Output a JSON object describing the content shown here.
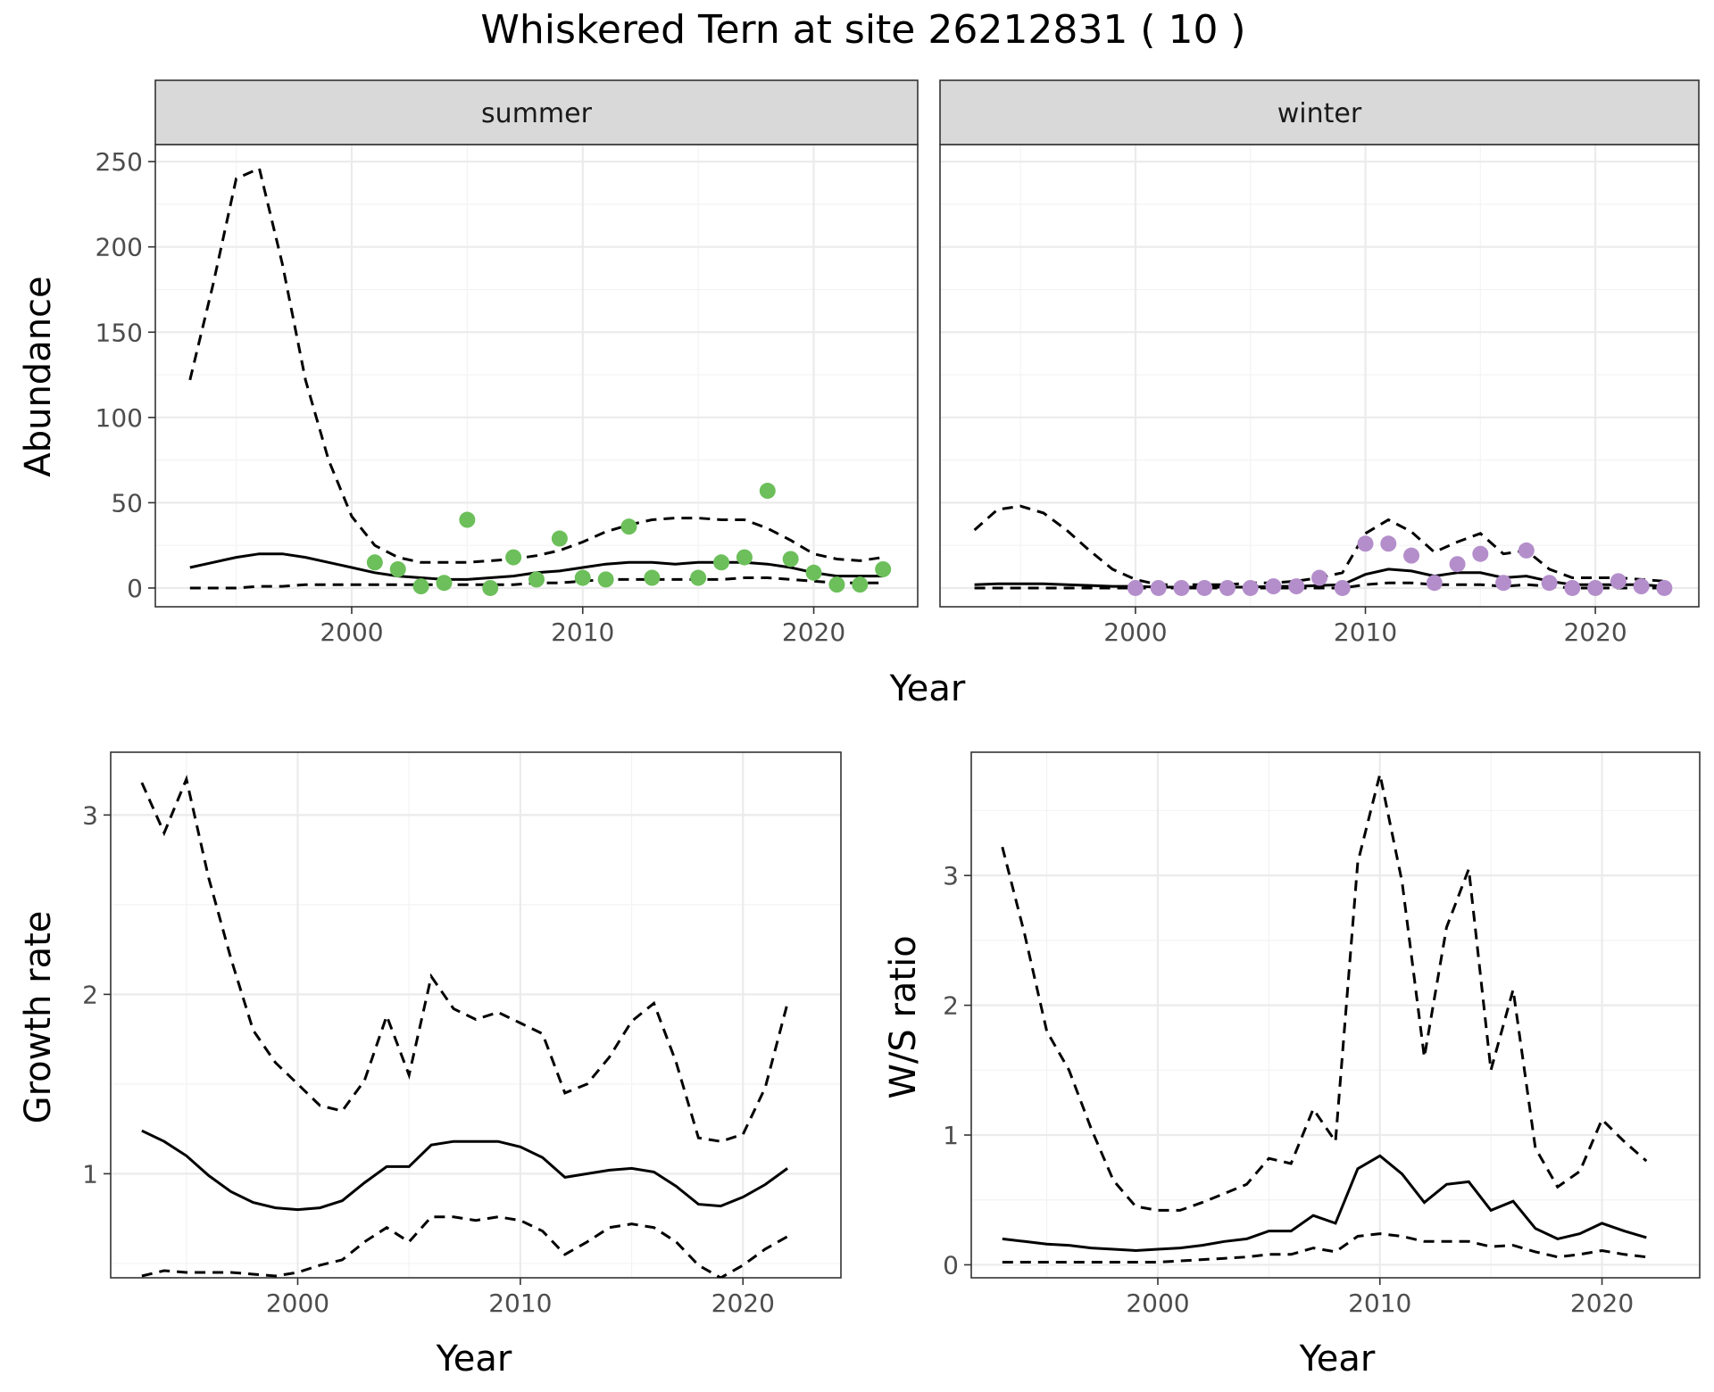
{
  "title": "Whiskered Tern at site 26212831 ( 10 )",
  "chart_data": [
    {
      "id": "summer",
      "type": "line",
      "strip_label": "summer",
      "xlabel": "Year",
      "ylabel": "Abundance",
      "xlim": [
        1991.5,
        2024.5
      ],
      "ylim": [
        -11,
        260
      ],
      "xticks": [
        2000,
        2010,
        2020
      ],
      "yticks": [
        0,
        50,
        100,
        150,
        200,
        250
      ],
      "grid": true,
      "point_color": "#6cbf5a",
      "fit": {
        "x": [
          1993,
          1994,
          1995,
          1996,
          1997,
          1998,
          1999,
          2000,
          2001,
          2002,
          2003,
          2004,
          2005,
          2006,
          2007,
          2008,
          2009,
          2010,
          2011,
          2012,
          2013,
          2014,
          2015,
          2016,
          2017,
          2018,
          2019,
          2020,
          2021,
          2022,
          2023
        ],
        "mean": [
          12,
          15,
          18,
          20,
          20,
          18,
          15,
          12,
          9,
          7,
          6,
          5,
          5,
          6,
          7,
          9,
          10,
          12,
          14,
          15,
          15,
          14,
          15,
          15,
          15,
          14,
          12,
          9,
          7,
          7,
          7
        ],
        "upper": [
          122,
          178,
          240,
          246,
          190,
          122,
          75,
          42,
          25,
          18,
          15,
          15,
          15,
          16,
          17,
          19,
          22,
          27,
          33,
          37,
          40,
          41,
          41,
          40,
          40,
          35,
          28,
          20,
          17,
          16,
          18
        ],
        "lower": [
          0,
          0,
          0,
          1,
          1,
          2,
          2,
          2,
          2,
          2,
          2,
          2,
          2,
          2,
          2,
          3,
          3,
          4,
          5,
          5,
          5,
          5,
          5,
          5,
          6,
          6,
          5,
          4,
          3,
          3,
          3
        ]
      },
      "points": {
        "x": [
          2001,
          2002,
          2003,
          2004,
          2005,
          2006,
          2007,
          2008,
          2009,
          2010,
          2011,
          2012,
          2013,
          2015,
          2016,
          2017,
          2018,
          2019,
          2020,
          2021,
          2022,
          2023
        ],
        "y": [
          15,
          11,
          1,
          3,
          40,
          0,
          18,
          5,
          29,
          6,
          5,
          36,
          6,
          6,
          15,
          18,
          57,
          17,
          9,
          2,
          2,
          11
        ]
      }
    },
    {
      "id": "winter",
      "type": "line",
      "strip_label": "winter",
      "xlabel": "Year",
      "ylabel": "Abundance",
      "xlim": [
        1991.5,
        2024.5
      ],
      "ylim": [
        -11,
        260
      ],
      "xticks": [
        2000,
        2010,
        2020
      ],
      "yticks": [
        0,
        50,
        100,
        150,
        200,
        250
      ],
      "grid": true,
      "point_color": "#b48ecb",
      "fit": {
        "x": [
          1993,
          1994,
          1995,
          1996,
          1997,
          1998,
          1999,
          2000,
          2001,
          2002,
          2003,
          2004,
          2005,
          2006,
          2007,
          2008,
          2009,
          2010,
          2011,
          2012,
          2013,
          2014,
          2015,
          2016,
          2017,
          2018,
          2019,
          2020,
          2021,
          2022,
          2023
        ],
        "mean": [
          2,
          2.5,
          2.5,
          2.5,
          2,
          1.5,
          1,
          1,
          0.5,
          0.5,
          0.5,
          0.5,
          0.5,
          1,
          1,
          1.5,
          2,
          8,
          11,
          10,
          7,
          9,
          9,
          6,
          7,
          4,
          2,
          2,
          2,
          2,
          1
        ],
        "upper": [
          34,
          46,
          48,
          44,
          34,
          22,
          11,
          5,
          2,
          2,
          2,
          2,
          3,
          3,
          4,
          6,
          9,
          32,
          40,
          33,
          21,
          27,
          32,
          20,
          22,
          11,
          6,
          6,
          6,
          5,
          4
        ],
        "lower": [
          0,
          0,
          0,
          0,
          0,
          0,
          0,
          0,
          0,
          0,
          0,
          0,
          0,
          0,
          0,
          0,
          0,
          2,
          3,
          3,
          2,
          2,
          2,
          1,
          2,
          1,
          0,
          0,
          0,
          0,
          0
        ]
      },
      "points": {
        "x": [
          2000,
          2001,
          2002,
          2003,
          2004,
          2005,
          2006,
          2007,
          2008,
          2009,
          2010,
          2011,
          2012,
          2013,
          2014,
          2015,
          2016,
          2017,
          2018,
          2019,
          2020,
          2021,
          2022,
          2023
        ],
        "y": [
          0,
          0,
          0,
          0,
          0,
          0,
          1,
          1,
          6,
          0,
          26,
          26,
          19,
          3,
          14,
          20,
          3,
          22,
          3,
          0,
          0,
          4,
          1,
          0
        ]
      }
    },
    {
      "id": "growth",
      "type": "line",
      "xlabel": "Year",
      "ylabel": "Growth rate",
      "xlim": [
        1991.6,
        2024.4
      ],
      "ylim": [
        0.42,
        3.35
      ],
      "xticks": [
        2000,
        2010,
        2020
      ],
      "yticks": [
        1,
        2,
        3
      ],
      "grid": true,
      "fit": {
        "x": [
          1993,
          1994,
          1995,
          1996,
          1997,
          1998,
          1999,
          2000,
          2001,
          2002,
          2003,
          2004,
          2005,
          2006,
          2007,
          2008,
          2009,
          2010,
          2011,
          2012,
          2013,
          2014,
          2015,
          2016,
          2017,
          2018,
          2019,
          2020,
          2021,
          2022
        ],
        "mean": [
          1.24,
          1.18,
          1.1,
          0.99,
          0.9,
          0.84,
          0.81,
          0.8,
          0.81,
          0.85,
          0.95,
          1.04,
          1.04,
          1.16,
          1.18,
          1.18,
          1.18,
          1.15,
          1.09,
          0.98,
          1.0,
          1.02,
          1.03,
          1.01,
          0.93,
          0.83,
          0.82,
          0.87,
          0.94,
          1.03
        ],
        "upper": [
          3.18,
          2.9,
          3.2,
          2.65,
          2.2,
          1.8,
          1.62,
          1.5,
          1.38,
          1.35,
          1.52,
          1.88,
          1.55,
          2.1,
          1.92,
          1.86,
          1.9,
          1.84,
          1.78,
          1.45,
          1.5,
          1.65,
          1.85,
          1.95,
          1.62,
          1.2,
          1.18,
          1.22,
          1.48,
          1.95
        ],
        "lower": [
          0.43,
          0.46,
          0.45,
          0.45,
          0.45,
          0.44,
          0.43,
          0.45,
          0.49,
          0.52,
          0.62,
          0.7,
          0.62,
          0.76,
          0.76,
          0.74,
          0.76,
          0.74,
          0.68,
          0.55,
          0.62,
          0.7,
          0.72,
          0.7,
          0.62,
          0.49,
          0.42,
          0.49,
          0.58,
          0.65
        ]
      }
    },
    {
      "id": "ws",
      "type": "line",
      "xlabel": "Year",
      "ylabel": "W/S ratio",
      "xlim": [
        1991.6,
        2024.4
      ],
      "ylim": [
        -0.1,
        3.95
      ],
      "xticks": [
        2000,
        2010,
        2020
      ],
      "yticks": [
        0,
        1,
        2,
        3
      ],
      "grid": true,
      "fit": {
        "x": [
          1993,
          1994,
          1995,
          1996,
          1997,
          1998,
          1999,
          2000,
          2001,
          2002,
          2003,
          2004,
          2005,
          2006,
          2007,
          2008,
          2009,
          2010,
          2011,
          2012,
          2013,
          2014,
          2015,
          2016,
          2017,
          2018,
          2019,
          2020,
          2021,
          2022
        ],
        "mean": [
          0.2,
          0.18,
          0.16,
          0.15,
          0.13,
          0.12,
          0.11,
          0.12,
          0.13,
          0.15,
          0.18,
          0.2,
          0.26,
          0.26,
          0.38,
          0.32,
          0.74,
          0.84,
          0.7,
          0.48,
          0.62,
          0.64,
          0.42,
          0.49,
          0.28,
          0.2,
          0.24,
          0.32,
          0.26,
          0.21
        ],
        "upper": [
          3.22,
          2.55,
          1.8,
          1.5,
          1.05,
          0.65,
          0.45,
          0.42,
          0.42,
          0.48,
          0.55,
          0.62,
          0.82,
          0.78,
          1.2,
          0.95,
          3.1,
          3.78,
          2.95,
          1.6,
          2.6,
          3.05,
          1.5,
          2.12,
          0.9,
          0.6,
          0.72,
          1.12,
          0.95,
          0.8
        ],
        "lower": [
          0.02,
          0.02,
          0.02,
          0.02,
          0.02,
          0.02,
          0.02,
          0.02,
          0.03,
          0.04,
          0.05,
          0.06,
          0.08,
          0.08,
          0.13,
          0.1,
          0.22,
          0.24,
          0.22,
          0.18,
          0.18,
          0.18,
          0.14,
          0.15,
          0.1,
          0.06,
          0.08,
          0.11,
          0.08,
          0.06
        ]
      }
    }
  ]
}
